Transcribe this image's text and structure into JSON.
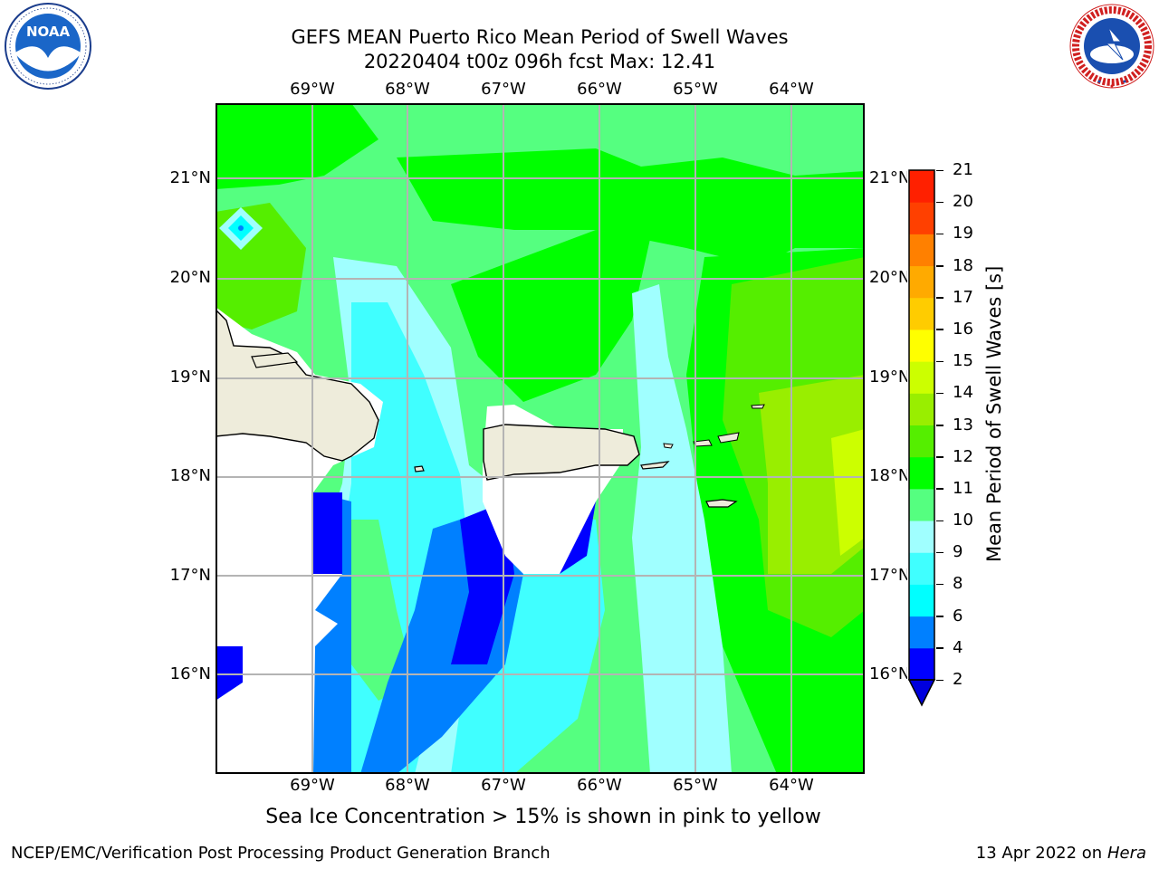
{
  "header": {
    "title_line1": "GEFS MEAN Puerto Rico Mean Period of Swell Waves",
    "title_line2": "20220404 t00z 096h fcst   Max: 12.41"
  },
  "logos": {
    "left": {
      "name": "NOAA",
      "ring_text": "NATIONAL OCEANIC AND ATMOSPHERIC ADMINISTRATION · U.S. DEPARTMENT OF COMMERCE"
    },
    "right": {
      "ring_text": "NATIONAL WEATHER SERVICE"
    }
  },
  "map": {
    "lon_labels": [
      "69°W",
      "68°W",
      "67°W",
      "66°W",
      "65°W",
      "64°W"
    ],
    "lat_labels": [
      "21°N",
      "20°N",
      "19°N",
      "18°N",
      "17°N",
      "16°N"
    ],
    "gridlines": true,
    "colors": {
      "land": "#eeecdb",
      "nodata": "#ffffff",
      "grid": "#b4b4b4"
    }
  },
  "colorbar": {
    "label": "Mean Period of Swell Waves [s]",
    "levels": [
      "2",
      "4",
      "6",
      "8",
      "9",
      "10",
      "11",
      "12",
      "13",
      "14",
      "15",
      "16",
      "17",
      "18",
      "19",
      "20",
      "21"
    ],
    "colors": [
      "#0000ff",
      "#0080ff",
      "#00ffff",
      "#40ffff",
      "#a0ffff",
      "#55ff80",
      "#00ff00",
      "#55ee00",
      "#99ee00",
      "#ccff00",
      "#ffff00",
      "#ffcc00",
      "#ffaa00",
      "#ff8000",
      "#ff4000",
      "#ff2000",
      "#ff0000"
    ],
    "under_color": "#0000dd"
  },
  "notes": {
    "sea_ice": "Sea Ice Concentration > 15% is shown in pink to yellow"
  },
  "footer": {
    "left": "NCEP/EMC/Verification Post Processing Product Generation Branch",
    "date": "13 Apr 2022 on ",
    "machine": "Hera"
  }
}
